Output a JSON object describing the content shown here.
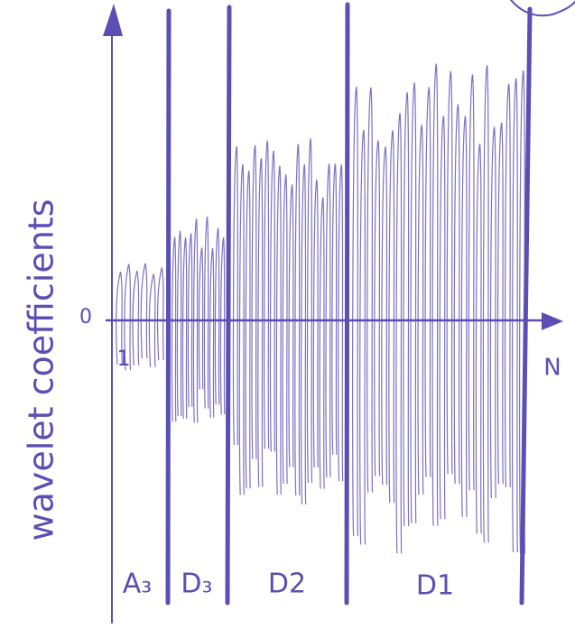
{
  "axis_labels": {
    "y": "wavelet coefficients",
    "origin": "0",
    "first_index": "1",
    "x": "N"
  },
  "sections": [
    {
      "label": "A₃"
    },
    {
      "label": "D₃"
    },
    {
      "label": "D2"
    },
    {
      "label": "D1"
    }
  ]
}
